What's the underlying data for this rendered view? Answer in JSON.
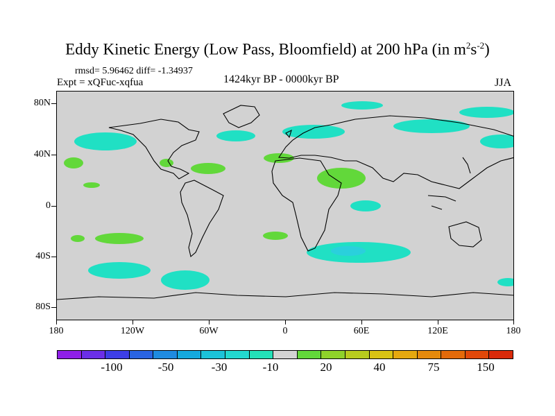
{
  "title": "Eddy Kinetic Energy (Low Pass, Bloomfield) at 200 hPa (in m²s⁻²)",
  "stats": "rmsd= 5.96462 diff= -1.34937",
  "expt": "Expt = xQFuc-xqfua",
  "period": "1424kyr BP - 0000kyr BP",
  "season": "JJA",
  "y_axis_labels": [
    "80N",
    "40N",
    "0",
    "40S",
    "80S"
  ],
  "x_axis_labels": [
    "180",
    "120W",
    "60W",
    "0",
    "60E",
    "120E",
    "180"
  ],
  "colorbar": {
    "colors": [
      "#8f1fe8",
      "#6b2fe8",
      "#3d3ee6",
      "#2a64e2",
      "#1f8be0",
      "#15a9de",
      "#1cc3d9",
      "#22d8cf",
      "#24e0b8",
      "#d3d3d3",
      "#62d83a",
      "#8fd22a",
      "#b8cc1e",
      "#d9c314",
      "#e5a80f",
      "#e58a0c",
      "#e36a0a",
      "#e0480a",
      "#d92a0a"
    ],
    "labels": [
      "-100",
      "-50",
      "-30",
      "-10",
      "20",
      "40",
      "75",
      "150"
    ]
  },
  "map": {
    "background": "#d2d2d2",
    "negative_color": "#20e0c4",
    "negative_strong_color": "#2ad0dc",
    "positive_color": "#62d83a"
  }
}
